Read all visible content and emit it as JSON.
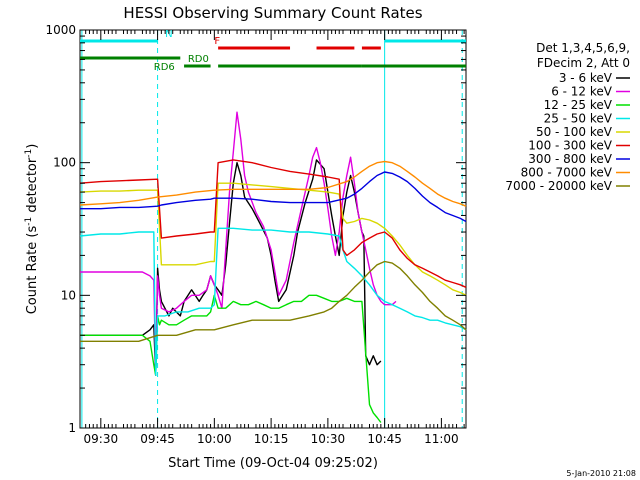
{
  "chart_data": {
    "type": "line",
    "title": "HESSI Observing Summary Count Rates",
    "xlabel": "Start Time (09-Oct-04 09:25:02)",
    "ylabel_main": "Count Rate (s",
    "ylabel_sup1": "-1",
    "ylabel_mid": " detector",
    "ylabel_sup2": "-1",
    "ylabel_end": ")",
    "yscale": "log",
    "ylim": [
      1,
      1000
    ],
    "xlim_minutes": [
      -0.5,
      101.5
    ],
    "x_ticks": [
      {
        "m": 5,
        "label": "09:30"
      },
      {
        "m": 20,
        "label": "09:45"
      },
      {
        "m": 35,
        "label": "10:00"
      },
      {
        "m": 50,
        "label": "10:15"
      },
      {
        "m": 65,
        "label": "10:30"
      },
      {
        "m": 80,
        "label": "10:45"
      },
      {
        "m": 95,
        "label": "11:00"
      }
    ],
    "y_ticks": [
      {
        "v": 1,
        "label": "1"
      },
      {
        "v": 10,
        "label": "10"
      },
      {
        "v": 100,
        "label": "100"
      },
      {
        "v": 1000,
        "label": "1000"
      }
    ],
    "legend_header": [
      "Det 1,3,4,5,6,9,",
      "FDecim 2, Att 0"
    ],
    "legend_position": "right",
    "footer_date": "5-Jan-2010 21:08",
    "series": [
      {
        "name": "3 - 6 keV",
        "color": "#000000",
        "x": [
          -0.5,
          8,
          13,
          16,
          18,
          19,
          19.5,
          20,
          20.5,
          21,
          23,
          24,
          26,
          27,
          29,
          31,
          32,
          33,
          34,
          35,
          36,
          37,
          38,
          39,
          40,
          41,
          42,
          43,
          45,
          47,
          49,
          50,
          51,
          52,
          54,
          56,
          57,
          59,
          61,
          62,
          64,
          65,
          66,
          67,
          68,
          69,
          70,
          71,
          72,
          73,
          74,
          74.5,
          75,
          76,
          77,
          78,
          79
        ],
        "y": [
          5,
          5,
          5,
          5,
          5.5,
          6,
          2.5,
          16,
          11,
          9,
          7,
          8,
          7,
          9,
          11,
          9,
          10,
          11,
          14,
          12,
          11,
          10,
          17,
          35,
          70,
          100,
          80,
          55,
          45,
          35,
          27,
          20,
          13,
          9,
          11,
          20,
          30,
          50,
          75,
          105,
          90,
          60,
          40,
          28,
          20,
          40,
          60,
          80,
          60,
          42,
          30,
          28,
          3.5,
          3,
          3.5,
          3,
          3.2
        ]
      },
      {
        "name": "6 - 12 keV",
        "color": "#e000e0",
        "x": [
          -0.5,
          8,
          13,
          16,
          18,
          19,
          19.5,
          20,
          20.5,
          21,
          23,
          25,
          27,
          29,
          31,
          33,
          34,
          35,
          36,
          37,
          38,
          39,
          40,
          41,
          42,
          43,
          44,
          46,
          48,
          50,
          51,
          52,
          54,
          56,
          58,
          60,
          61,
          62,
          63,
          64,
          65,
          66,
          67,
          68,
          69,
          70,
          71,
          72,
          73,
          74,
          75,
          76,
          77,
          78,
          79,
          80,
          82,
          83
        ],
        "y": [
          15,
          15,
          15,
          15,
          14,
          13,
          2.5,
          14,
          10,
          8,
          7.5,
          8,
          9,
          10,
          10,
          11,
          14,
          12,
          10,
          8,
          22,
          60,
          120,
          240,
          150,
          80,
          60,
          42,
          33,
          22,
          15,
          10,
          13,
          25,
          45,
          80,
          110,
          130,
          100,
          70,
          45,
          28,
          20,
          30,
          55,
          80,
          110,
          70,
          42,
          30,
          22,
          16,
          12,
          10,
          9,
          8.5,
          8.5,
          9
        ]
      },
      {
        "name": "12 - 25 keV",
        "color": "#00e000",
        "x": [
          -0.5,
          8,
          13,
          16,
          18,
          19,
          19.5,
          20,
          20.5,
          21,
          23,
          25,
          27,
          29,
          31,
          33,
          34,
          35,
          36,
          38,
          40,
          42,
          44,
          46,
          48,
          50,
          52,
          54,
          56,
          58,
          60,
          62,
          64,
          66,
          68,
          70,
          72,
          74,
          76,
          77,
          78,
          79
        ],
        "y": [
          5,
          5,
          5,
          5,
          4.5,
          3,
          2.5,
          7,
          6,
          6.5,
          6,
          6,
          6.5,
          7,
          7,
          7,
          7.5,
          10,
          8,
          8,
          9,
          8.5,
          8.5,
          9,
          8.5,
          8,
          8,
          8.5,
          9,
          9,
          10,
          10,
          9.5,
          9,
          9,
          9.5,
          9,
          9,
          1.5,
          1.3,
          1.2,
          1.1
        ]
      },
      {
        "name": "25 - 50 keV",
        "color": "#00e8e8",
        "x": [
          -0.5,
          5,
          10,
          15,
          19,
          19.5,
          20,
          22,
          25,
          28,
          31,
          34,
          35,
          36,
          40,
          45,
          50,
          55,
          60,
          65,
          68,
          69,
          70,
          72,
          74,
          76,
          78,
          80,
          82,
          84,
          86,
          88,
          90,
          92,
          94,
          96,
          98,
          100,
          101.5
        ],
        "y": [
          28,
          29,
          29,
          30,
          30,
          2.5,
          7,
          7,
          7.5,
          7.5,
          8,
          8,
          8.5,
          32,
          32,
          31,
          31,
          30,
          30,
          29,
          28,
          22,
          18,
          16,
          14,
          12,
          10,
          9,
          8.5,
          8,
          7.5,
          7,
          6.8,
          6.5,
          6.5,
          6.2,
          6,
          5.8,
          5.5
        ]
      },
      {
        "name": "50 - 100 keV",
        "color": "#d8d800",
        "x": [
          -0.5,
          5,
          10,
          15,
          20,
          21,
          25,
          30,
          34,
          35,
          36,
          40,
          45,
          50,
          55,
          60,
          65,
          68,
          69,
          70,
          72,
          74,
          76,
          78,
          80,
          82,
          84,
          86,
          88,
          90,
          92,
          94,
          96,
          98,
          100,
          101.5
        ],
        "y": [
          60,
          61,
          61,
          62,
          62,
          17,
          17,
          17,
          18,
          18,
          70,
          70,
          68,
          66,
          64,
          62,
          60,
          58,
          38,
          35,
          36,
          38,
          37,
          35,
          32,
          28,
          24,
          20,
          17,
          15,
          14,
          13,
          12,
          11,
          10.5,
          10
        ]
      },
      {
        "name": "100 - 300 keV",
        "color": "#e00000",
        "x": [
          -0.5,
          5,
          10,
          15,
          20,
          21,
          25,
          30,
          34,
          35,
          36,
          40,
          45,
          50,
          55,
          60,
          65,
          68,
          69,
          70,
          72,
          74,
          76,
          78,
          80,
          82,
          84,
          86,
          88,
          90,
          92,
          94,
          96,
          98,
          100,
          101.5
        ],
        "y": [
          70,
          72,
          73,
          74,
          75,
          27,
          28,
          29,
          30,
          30,
          100,
          105,
          100,
          92,
          86,
          82,
          78,
          75,
          22,
          20,
          22,
          25,
          27,
          29,
          30,
          27,
          22,
          19,
          17,
          16,
          15,
          14,
          13,
          12.5,
          12,
          11.5
        ]
      },
      {
        "name": "300 - 800 keV",
        "color": "#0000e0",
        "x": [
          -0.5,
          5,
          10,
          15,
          20,
          21,
          25,
          30,
          34,
          35,
          40,
          45,
          50,
          55,
          60,
          65,
          70,
          72,
          74,
          76,
          78,
          80,
          82,
          84,
          86,
          88,
          90,
          92,
          94,
          96,
          98,
          100,
          101.5
        ],
        "y": [
          45,
          45,
          46,
          46,
          47,
          48,
          50,
          52,
          53,
          54,
          54,
          53,
          51,
          50,
          50,
          50,
          54,
          58,
          64,
          72,
          80,
          85,
          83,
          78,
          72,
          64,
          56,
          50,
          46,
          42,
          40,
          38,
          36
        ]
      },
      {
        "name": "800 - 7000 keV",
        "color": "#ff8c00",
        "x": [
          -0.5,
          5,
          10,
          15,
          20,
          25,
          30,
          35,
          40,
          45,
          50,
          55,
          60,
          65,
          70,
          72,
          74,
          76,
          78,
          80,
          82,
          84,
          86,
          88,
          90,
          92,
          94,
          96,
          98,
          100,
          101.5
        ],
        "y": [
          48,
          49,
          50,
          52,
          55,
          57,
          60,
          62,
          63,
          63,
          63,
          63,
          63,
          65,
          72,
          78,
          86,
          94,
          100,
          102,
          100,
          94,
          86,
          78,
          70,
          64,
          58,
          54,
          51,
          49,
          47
        ]
      },
      {
        "name": "7000 - 20000 keV",
        "color": "#808000",
        "x": [
          -0.5,
          5,
          10,
          15,
          20,
          25,
          30,
          35,
          40,
          45,
          50,
          55,
          60,
          64,
          66,
          68,
          70,
          72,
          74,
          76,
          78,
          80,
          82,
          84,
          86,
          88,
          90,
          92,
          94,
          96,
          98,
          100,
          101.5
        ],
        "y": [
          4.5,
          4.5,
          4.5,
          4.5,
          5,
          5,
          5.5,
          5.5,
          6,
          6.5,
          6.5,
          6.5,
          7,
          7.5,
          8,
          9,
          10,
          11.5,
          13,
          15,
          17,
          18,
          17.5,
          16,
          14,
          12,
          10.5,
          9,
          8,
          7,
          6.5,
          6,
          5.5
        ]
      }
    ],
    "state_bars": [
      {
        "label": "N",
        "color": "#00e8e8",
        "row": 1,
        "label_at": 22,
        "segments": [
          [
            -0.5,
            20
          ],
          [
            80,
            101.5
          ]
        ]
      },
      {
        "label": "F",
        "color": "#e00000",
        "row": 2,
        "label_at": 35,
        "segments": [
          [
            36,
            55
          ],
          [
            62,
            72
          ],
          [
            74,
            79
          ]
        ]
      },
      {
        "label": "RD6",
        "color": "#008000",
        "row": 3,
        "label_at": 19,
        "segments": [
          [
            -0.5,
            26
          ]
        ]
      },
      {
        "label": "RD0",
        "color": "#008000",
        "row": 4,
        "label_at": 28,
        "segments": [
          [
            27,
            34
          ],
          [
            36,
            74
          ],
          [
            74,
            101.5
          ]
        ]
      }
    ],
    "vlines_solid": [
      0,
      80
    ],
    "vlines_dashed": [
      20,
      100.5
    ]
  }
}
